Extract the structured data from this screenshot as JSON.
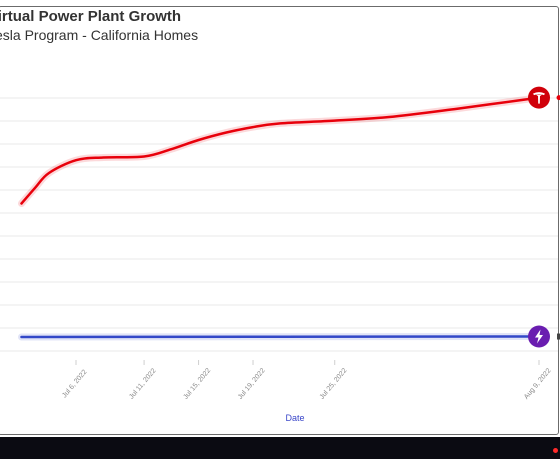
{
  "chart_data": {
    "type": "line",
    "title": "Virtual Power Plant Growth",
    "subtitle": "Tesla Program - California Homes",
    "xlabel": "Date",
    "ylabel": "",
    "x_tick_labels": [
      "Jul 6, 2022",
      "Jul 11, 2022",
      "Jul 15, 2022",
      "Jul 19, 2022",
      "Jul 25, 2022",
      "Aug 9, 2022"
    ],
    "grid": true,
    "series": [
      {
        "color": "#e8000b",
        "icon": "tesla-logo-icon",
        "x": [
          "Jul 2, 2022",
          "Jul 3, 2022",
          "Jul 4, 2022",
          "Jul 6, 2022",
          "Jul 8, 2022",
          "Jul 11, 2022",
          "Jul 13, 2022",
          "Jul 15, 2022",
          "Jul 17, 2022",
          "Jul 19, 2022",
          "Jul 21, 2022",
          "Jul 25, 2022",
          "Jul 29, 2022",
          "Aug 3, 2022",
          "Aug 9, 2022"
        ],
        "values": [
          145,
          162,
          178,
          192,
          195,
          196,
          204,
          214,
          222,
          228,
          232,
          235,
          239,
          248,
          260
        ]
      },
      {
        "color": "#3348c8",
        "icon": "lightning-bolt-icon",
        "x": [
          "Jul 2, 2022",
          "Aug 9, 2022"
        ],
        "values": [
          0,
          0.5
        ]
      }
    ]
  }
}
